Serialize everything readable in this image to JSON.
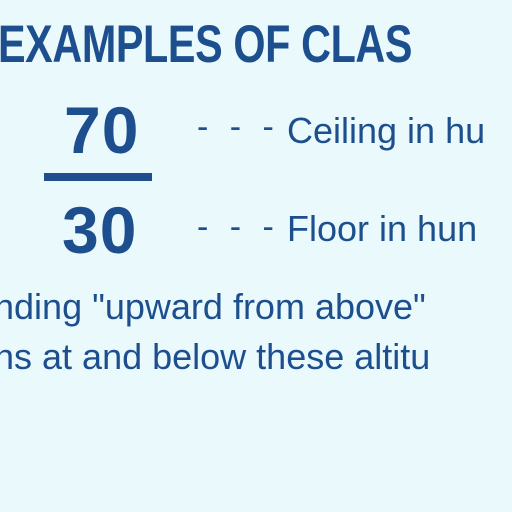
{
  "header": {
    "title": "EXAMPLES OF CLAS"
  },
  "legend": {
    "ceiling": {
      "value": "70",
      "dashes": "- - -",
      "description": "Ceiling in hu"
    },
    "floor": {
      "value": "30",
      "dashes": "- - -",
      "description": "Floor in hun"
    }
  },
  "note": {
    "line1": "nding \"upward from above\"",
    "line2": "ns at and below these altitu"
  },
  "colors": {
    "background": "#e9f9fc",
    "text": "#1d4f8e"
  }
}
